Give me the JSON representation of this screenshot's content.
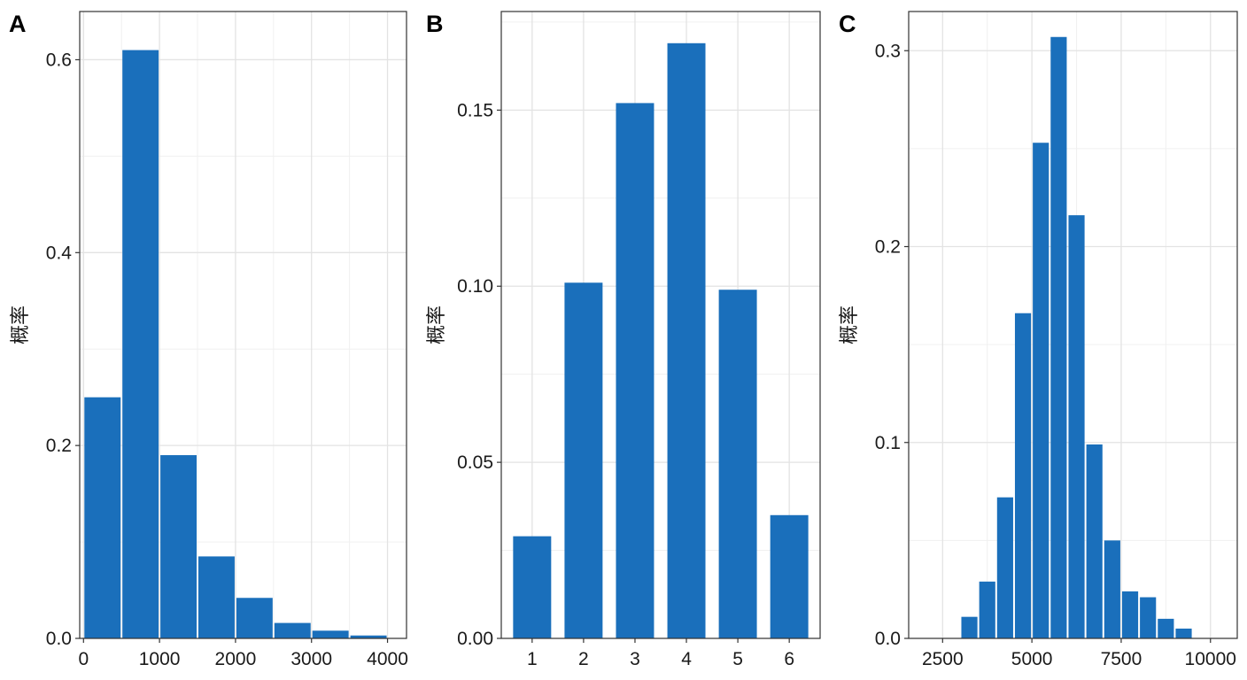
{
  "chart_data": [
    {
      "type": "bar",
      "panel_label": "A",
      "ylabel": "概率",
      "xlabel": "",
      "bin_width": 500,
      "x": [
        250,
        750,
        1250,
        1750,
        2250,
        2750,
        3250,
        3750
      ],
      "values": [
        0.25,
        0.61,
        0.19,
        0.085,
        0.042,
        0.016,
        0.008,
        0.003
      ],
      "xlim": [
        -50,
        4250
      ],
      "ylim": [
        0,
        0.65
      ],
      "xticks": [
        0,
        1000,
        2000,
        3000,
        4000
      ],
      "xtick_labels": [
        "0",
        "1000",
        "2000",
        "3000",
        "4000"
      ],
      "yticks": [
        0.0,
        0.2,
        0.4,
        0.6
      ],
      "ytick_labels": [
        "0.0",
        "0.2",
        "0.4",
        "0.6"
      ],
      "color": "#1a6fbb",
      "grid": true
    },
    {
      "type": "bar",
      "panel_label": "B",
      "ylabel": "概率",
      "xlabel": "",
      "categories": [
        "1",
        "2",
        "3",
        "4",
        "5",
        "6"
      ],
      "values": [
        0.029,
        0.101,
        0.152,
        0.169,
        0.099,
        0.035
      ],
      "ylim": [
        0,
        0.178
      ],
      "yticks": [
        0.0,
        0.05,
        0.1,
        0.15
      ],
      "ytick_labels": [
        "0.00",
        "0.05",
        "0.10",
        "0.15"
      ],
      "color": "#1a6fbb",
      "grid": true
    },
    {
      "type": "bar",
      "panel_label": "C",
      "ylabel": "概率",
      "xlabel": "",
      "bin_width": 500,
      "x": [
        2250,
        2750,
        3250,
        3750,
        4250,
        4750,
        5250,
        5750,
        6250,
        6750,
        7250,
        7750,
        8250,
        8750,
        9250,
        9750
      ],
      "values": [
        0.0,
        0.0,
        0.011,
        0.029,
        0.072,
        0.166,
        0.253,
        0.307,
        0.216,
        0.099,
        0.05,
        0.024,
        0.021,
        0.01,
        0.005,
        0.0
      ],
      "xlim": [
        1550,
        10750
      ],
      "ylim": [
        0,
        0.32
      ],
      "xticks": [
        2500,
        5000,
        7500,
        10000
      ],
      "xtick_labels": [
        "2500",
        "5000",
        "7500",
        "10000"
      ],
      "yticks": [
        0.0,
        0.1,
        0.2,
        0.3
      ],
      "ytick_labels": [
        "0.0",
        "0.1",
        "0.2",
        "0.3"
      ],
      "color": "#1a6fbb",
      "grid": true
    }
  ]
}
